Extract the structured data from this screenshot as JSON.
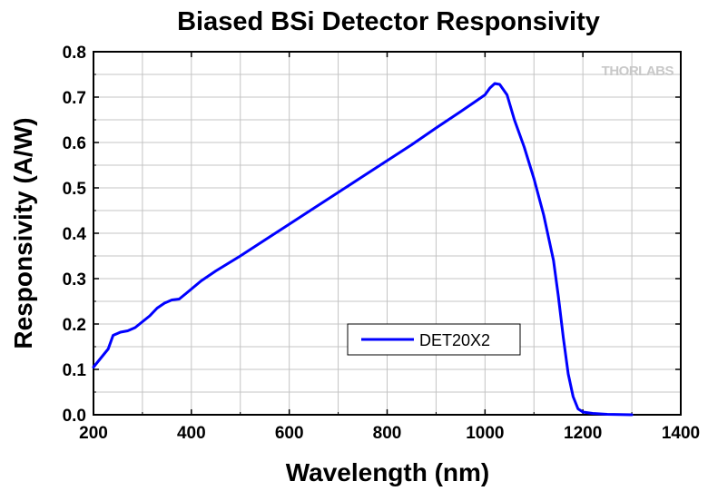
{
  "chart_data": {
    "type": "line",
    "title": "Biased BSi Detector Responsivity",
    "xlabel": "Wavelength (nm)",
    "ylabel": "Responsivity (A/W)",
    "xlim": [
      200,
      1400
    ],
    "ylim": [
      0,
      0.8
    ],
    "x_ticks": [
      200,
      400,
      600,
      800,
      1000,
      1200,
      1400
    ],
    "x_tick_labels": [
      "200",
      "400",
      "600",
      "800",
      "1000",
      "1200",
      "1400"
    ],
    "y_ticks": [
      0,
      0.1,
      0.2,
      0.3,
      0.4,
      0.5,
      0.6,
      0.7,
      0.8
    ],
    "y_tick_labels": [
      "0.0",
      "0.1",
      "0.2",
      "0.3",
      "0.4",
      "0.5",
      "0.6",
      "0.7",
      "0.8"
    ],
    "grid": true,
    "legend_position": "center-right",
    "series": [
      {
        "name": "DET20X2",
        "color": "#0000ff",
        "x": [
          200,
          215,
          230,
          240,
          255,
          270,
          285,
          300,
          315,
          330,
          345,
          360,
          375,
          390,
          400,
          420,
          450,
          500,
          550,
          600,
          650,
          700,
          750,
          800,
          850,
          900,
          950,
          980,
          1000,
          1010,
          1020,
          1030,
          1045,
          1060,
          1080,
          1100,
          1120,
          1140,
          1150,
          1160,
          1170,
          1180,
          1190,
          1200,
          1220,
          1250,
          1300
        ],
        "y": [
          0.105,
          0.125,
          0.145,
          0.175,
          0.182,
          0.185,
          0.192,
          0.205,
          0.218,
          0.235,
          0.246,
          0.253,
          0.255,
          0.268,
          0.277,
          0.295,
          0.317,
          0.35,
          0.385,
          0.42,
          0.455,
          0.49,
          0.525,
          0.56,
          0.595,
          0.632,
          0.668,
          0.69,
          0.705,
          0.72,
          0.73,
          0.728,
          0.705,
          0.65,
          0.59,
          0.52,
          0.44,
          0.34,
          0.26,
          0.17,
          0.09,
          0.04,
          0.013,
          0.006,
          0.003,
          0.001,
          0.0
        ]
      }
    ]
  },
  "logo": "THORLABS"
}
